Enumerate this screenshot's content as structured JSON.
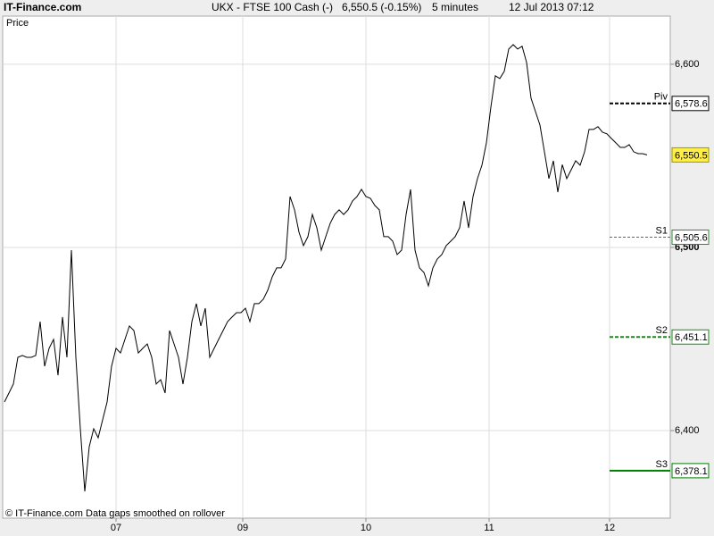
{
  "chart_data": {
    "type": "line",
    "source": "IT-Finance.com",
    "title": "UKX - FTSE 100 Cash (-)",
    "quote": "6,550.5 (-0.15%)",
    "interval": "5 minutes",
    "timestamp": "12 Jul 2013 07:12",
    "ylabel": "Price",
    "footer": "© IT-Finance.com  Data gaps smoothed on rollover",
    "grid": true,
    "xlim": [
      -0.4,
      149.2
    ],
    "xticks": [
      {
        "value": 25,
        "label": "07"
      },
      {
        "value": 53.4,
        "label": "09"
      },
      {
        "value": 81,
        "label": "10"
      },
      {
        "value": 108.6,
        "label": "11"
      },
      {
        "value": 135.6,
        "label": "12"
      }
    ],
    "ylim": [
      6352.2,
      6626.3
    ],
    "yticks": [
      {
        "value": 6400,
        "label": "6,400"
      },
      {
        "value": 6500,
        "label": "6,500"
      },
      {
        "value": 6600,
        "label": "6,600"
      }
    ],
    "series": [
      {
        "color": "#000000",
        "values": [
          6415.6,
          6420.5,
          6425.4,
          6440,
          6441,
          6440,
          6440,
          6441,
          6459.5,
          6435.1,
          6444.9,
          6449.8,
          6430.2,
          6462,
          6440,
          6498.5,
          6440,
          6401,
          6366.8,
          6391.2,
          6401,
          6396.1,
          6405.9,
          6415.6,
          6435.1,
          6444.9,
          6442.4,
          6449.8,
          6457.1,
          6454.6,
          6442.4,
          6444.9,
          6447.3,
          6440,
          6425.4,
          6427.8,
          6420.5,
          6454.6,
          6447.3,
          6440,
          6425.4,
          6440,
          6459.5,
          6469.3,
          6457.1,
          6466.8,
          6440,
          6444.9,
          6449.8,
          6454.6,
          6459.5,
          6462,
          6464.4,
          6464.4,
          6466.8,
          6459.5,
          6469.3,
          6469.3,
          6471.7,
          6476.6,
          6483.9,
          6488.8,
          6488.8,
          6493.7,
          6527.8,
          6520.5,
          6508.3,
          6501,
          6505.9,
          6518,
          6510.7,
          6498.5,
          6505.9,
          6513.2,
          6518,
          6520.5,
          6518,
          6520.5,
          6525.4,
          6527.8,
          6531.7,
          6527.8,
          6526.8,
          6522.9,
          6520.5,
          6505.9,
          6505.9,
          6503.4,
          6496.1,
          6498.5,
          6518,
          6531.7,
          6498.5,
          6488.8,
          6486.3,
          6479,
          6488.8,
          6493.7,
          6496.1,
          6501,
          6503.4,
          6505.9,
          6510.7,
          6525.4,
          6510.7,
          6527.8,
          6537.6,
          6544.9,
          6557.1,
          6576.6,
          6593.7,
          6592.2,
          6596.1,
          6608.3,
          6610.7,
          6608.3,
          6609.8,
          6601,
          6581.5,
          6574.1,
          6566.8,
          6552.2,
          6537.6,
          6547.3,
          6530.2,
          6545.2,
          6537.6,
          6542.4,
          6547.3,
          6544.9,
          6552.2,
          6564.4,
          6564.4,
          6565.9,
          6562.9,
          6562,
          6559.5,
          6557.1,
          6554.6,
          6554.6,
          6556.1,
          6552.2,
          6551.2,
          6551.2,
          6550.5
        ]
      }
    ],
    "last_label": "6,550.5",
    "levels": [
      {
        "label": "Piv",
        "value": 6578.6,
        "value_label": "6,578.6",
        "color": "#000000",
        "style": "dashed"
      },
      {
        "label": "S1",
        "value": 6505.6,
        "value_label": "6,505.6",
        "color": "#2e8b2e",
        "style": "dotted"
      },
      {
        "label": "S2",
        "value": 6451.1,
        "value_label": "6,451.1",
        "color": "#1a8a1a",
        "style": "dashed"
      },
      {
        "label": "S3",
        "value": 6378.1,
        "value_label": "6,378.1",
        "color": "#008000",
        "style": "solid"
      }
    ]
  }
}
